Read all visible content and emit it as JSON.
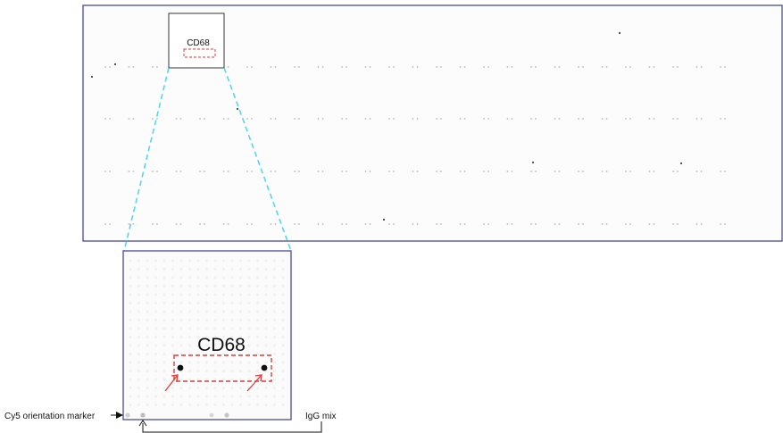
{
  "labels": {
    "zoom_label_small": "CD68",
    "zoom_label_large": "CD68",
    "cy5_marker": "Cy5 orientation marker",
    "igg_mix": "IgG mix"
  },
  "colors": {
    "array_border": "#4a4a9a",
    "zoom_connector": "#55d6ee",
    "highlight_box": "#e03a3a",
    "arrow_red": "#e03a3a",
    "spot_dark": "#111111",
    "spot_faint": "#bdbdbd"
  },
  "array": {
    "row_count": 4,
    "spots_per_row": 27
  }
}
